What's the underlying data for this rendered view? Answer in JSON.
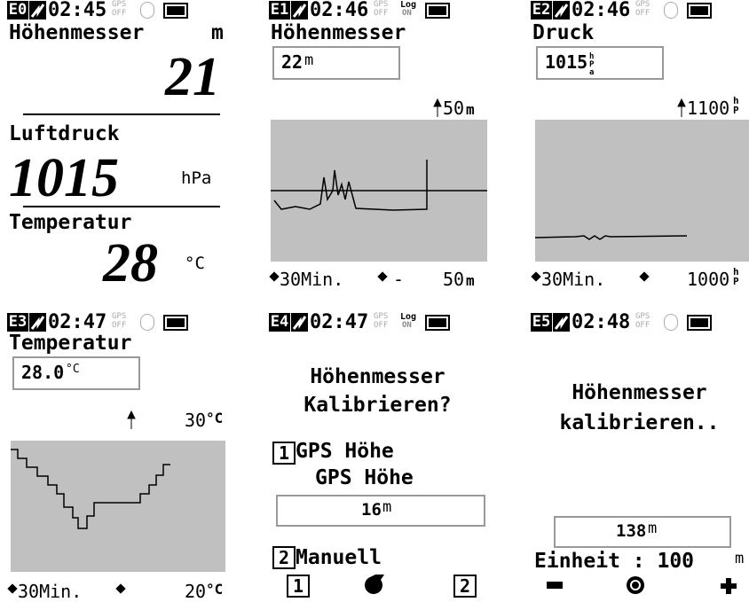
{
  "screens": [
    {
      "tag": "E0",
      "time": "02:45",
      "gps": [
        "GPS",
        "OFF"
      ],
      "label1": "Höhenmesser",
      "unit1": "m",
      "value1": "21",
      "label2": "Luftdruck",
      "value2": "1015",
      "unit2": "hPa",
      "label3": "Temperatur",
      "value3": "28",
      "unit3": "°C"
    },
    {
      "tag": "E1",
      "time": "02:46",
      "gps": [
        "GPS",
        "OFF"
      ],
      "log": [
        "Log",
        "ON"
      ],
      "title": "Höhenmesser",
      "reading": "22",
      "reading_unit": "m",
      "top": "50",
      "top_unit": "m",
      "span": "30Min.",
      "mark": "-",
      "bottom": "50",
      "bottom_unit": "m"
    },
    {
      "tag": "E2",
      "time": "02:46",
      "gps": [
        "GPS",
        "OFF"
      ],
      "title": "Druck",
      "reading": "1015",
      "reading_unit": "hPa",
      "top": "1100",
      "top_unit": "hP",
      "span": "30Min.",
      "bottom": "1000",
      "bottom_unit": "hP"
    },
    {
      "tag": "E3",
      "time": "02:47",
      "gps": [
        "GPS",
        "OFF"
      ],
      "title": "Temperatur",
      "reading": "28.0",
      "reading_unit": "°C",
      "top": "30",
      "top_unit": "°C",
      "span": "30Min.",
      "bottom": "20",
      "bottom_unit": "°C"
    },
    {
      "tag": "E4",
      "time": "02:47",
      "gps": [
        "GPS",
        "OFF"
      ],
      "log": [
        "Log",
        "ON"
      ],
      "title_lines": [
        "Höhenmesser",
        "Kalibrieren?"
      ],
      "option1_key": "1",
      "option1": "GPS Höhe",
      "source": "GPS Höhe",
      "reading": "16",
      "reading_unit": "m",
      "option2_key": "2",
      "option2": "Manuell",
      "softkeys": [
        "1",
        "2"
      ]
    },
    {
      "tag": "E5",
      "time": "02:48",
      "gps": [
        "GPS",
        "OFF"
      ],
      "title_lines": [
        "Höhenmesser",
        "kalibrieren.."
      ],
      "reading": "138",
      "reading_unit": "m",
      "step_label": "Einheit : 100",
      "step_unit": "m"
    }
  ]
}
